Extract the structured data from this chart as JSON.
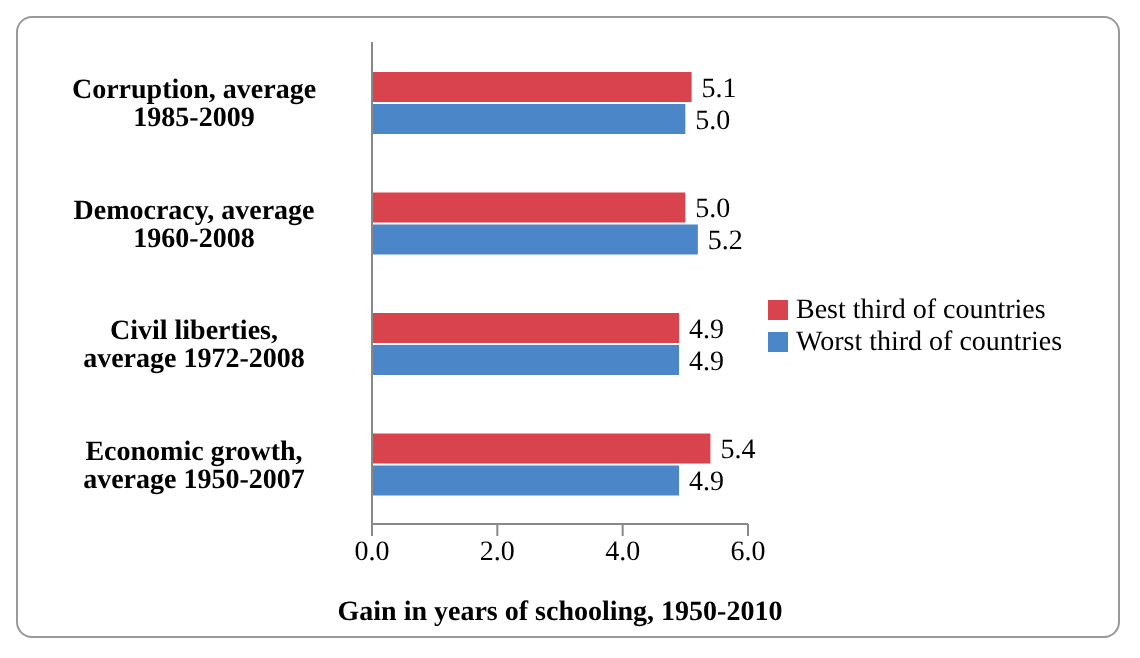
{
  "chart_data": {
    "type": "bar",
    "orientation": "horizontal",
    "xlabel": "Gain in years of schooling, 1950-2010",
    "categories": [
      "Corruption, average 1985-2009",
      "Democracy, average 1960-2008",
      "Civil liberties, average 1972-2008",
      "Economic growth, average 1950-2007"
    ],
    "series": [
      {
        "name": "Best third of countries",
        "color": "#d9434e",
        "values": [
          5.1,
          5.0,
          4.9,
          5.4
        ],
        "value_labels": [
          "5.1",
          "5.0",
          "4.9",
          "5.4"
        ]
      },
      {
        "name": "Worst third of countries",
        "color": "#4a86c8",
        "values": [
          5.0,
          5.2,
          4.9,
          4.9
        ],
        "value_labels": [
          "5.0",
          "5.2",
          "4.9",
          "4.9"
        ]
      }
    ],
    "xlim": [
      0,
      6
    ],
    "xticks": [
      {
        "value": 0,
        "label": "0.0"
      },
      {
        "value": 2,
        "label": "2.0"
      },
      {
        "value": 4,
        "label": "4.0"
      },
      {
        "value": 6,
        "label": "6.0"
      }
    ],
    "grid": false,
    "legend": "right"
  }
}
